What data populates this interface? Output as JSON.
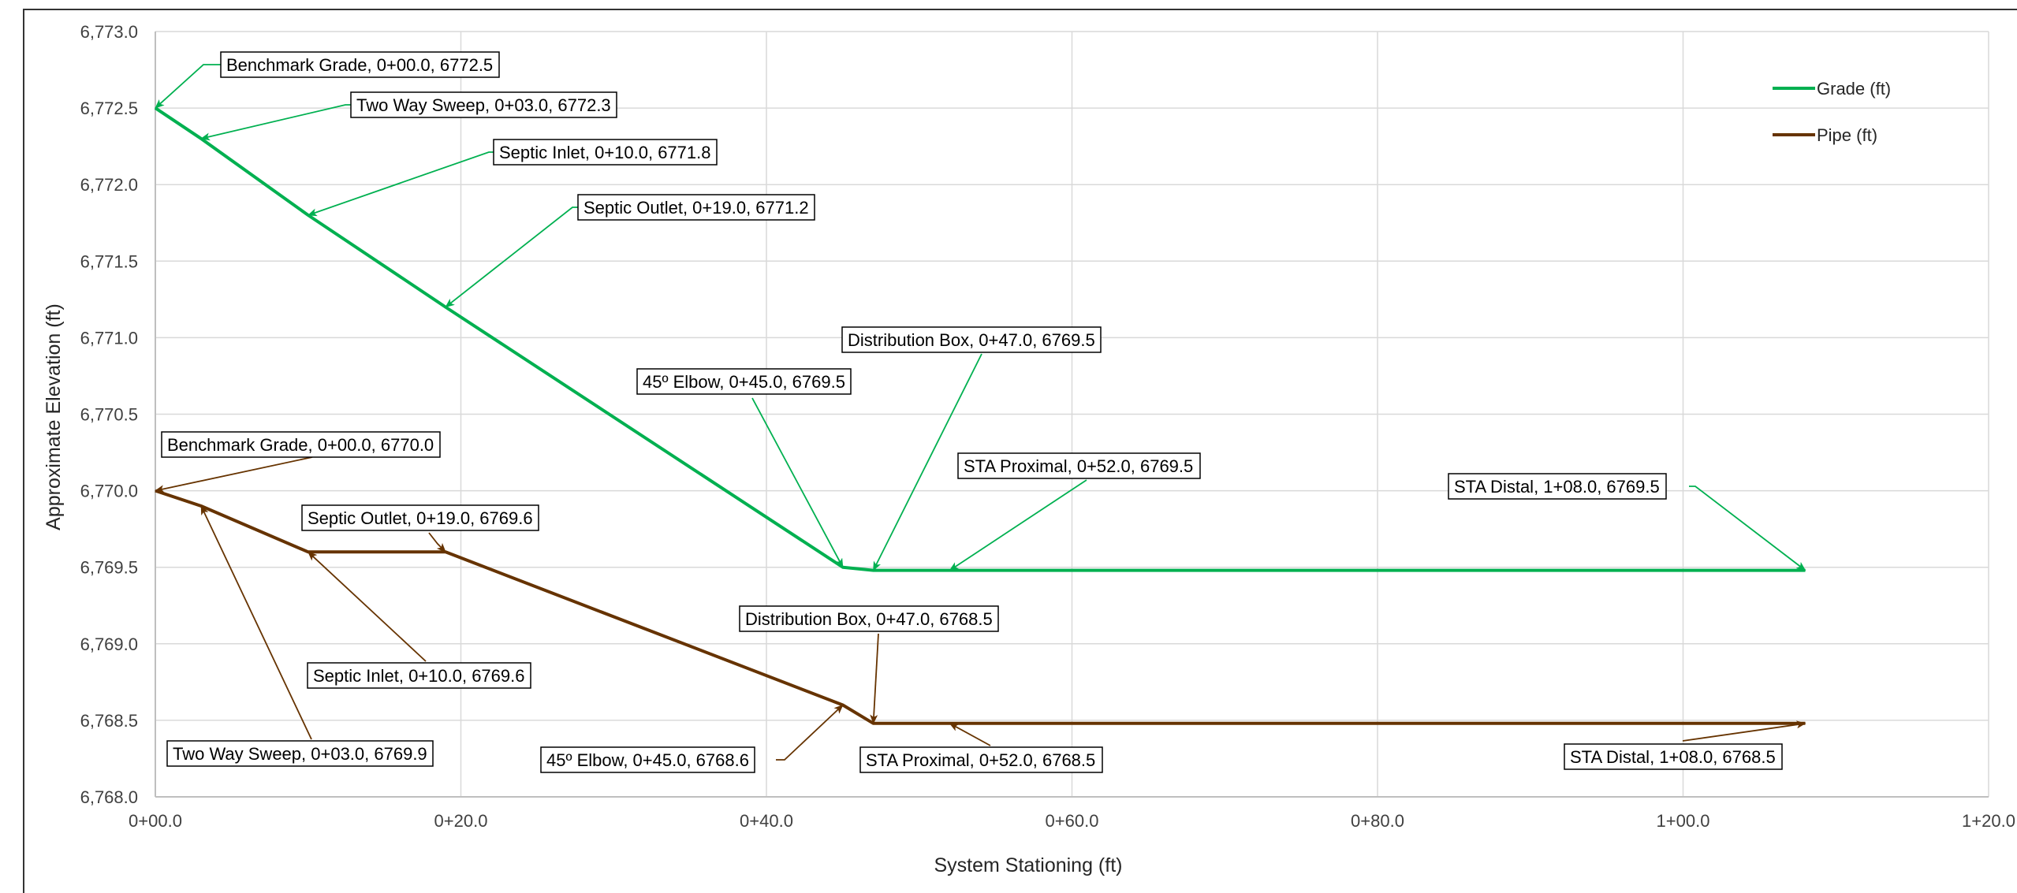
{
  "chart_data": {
    "type": "line",
    "xlabel": "System Stationing (ft)",
    "ylabel": "Approximate Elevation (ft)",
    "xlim": [
      0,
      120
    ],
    "ylim": [
      6768.0,
      6773.0
    ],
    "x_ticks": [
      {
        "value": 0,
        "label": "0+00.0"
      },
      {
        "value": 20,
        "label": "0+20.0"
      },
      {
        "value": 40,
        "label": "0+40.0"
      },
      {
        "value": 60,
        "label": "0+60.0"
      },
      {
        "value": 80,
        "label": "0+80.0"
      },
      {
        "value": 100,
        "label": "1+00.0"
      },
      {
        "value": 120,
        "label": "1+20.0"
      }
    ],
    "y_ticks": [
      {
        "value": 6768.0,
        "label": "6,768.0"
      },
      {
        "value": 6768.5,
        "label": "6,768.5"
      },
      {
        "value": 6769.0,
        "label": "6,769.0"
      },
      {
        "value": 6769.5,
        "label": "6,769.5"
      },
      {
        "value": 6770.0,
        "label": "6,770.0"
      },
      {
        "value": 6770.5,
        "label": "6,770.5"
      },
      {
        "value": 6771.0,
        "label": "6,771.0"
      },
      {
        "value": 6771.5,
        "label": "6,771.5"
      },
      {
        "value": 6772.0,
        "label": "6,772.0"
      },
      {
        "value": 6772.5,
        "label": "6,772.5"
      },
      {
        "value": 6773.0,
        "label": "6,773.0"
      }
    ],
    "grid": true,
    "legend_position": "top-right",
    "series": [
      {
        "name": "Grade (ft)",
        "color": "#00B050",
        "points": [
          {
            "x": 0,
            "y": 6772.5
          },
          {
            "x": 3,
            "y": 6772.3
          },
          {
            "x": 10,
            "y": 6771.8
          },
          {
            "x": 19,
            "y": 6771.2
          },
          {
            "x": 45,
            "y": 6769.5
          },
          {
            "x": 47,
            "y": 6769.48
          },
          {
            "x": 52,
            "y": 6769.48
          },
          {
            "x": 108,
            "y": 6769.48
          }
        ],
        "annotations": [
          {
            "label": "Benchmark Grade, 0+00.0, 6772.5",
            "x": 0,
            "y": 6772.5
          },
          {
            "label": "Two Way Sweep, 0+03.0, 6772.3",
            "x": 3,
            "y": 6772.3
          },
          {
            "label": "Septic Inlet, 0+10.0, 6771.8",
            "x": 10,
            "y": 6771.8
          },
          {
            "label": "Septic Outlet, 0+19.0, 6771.2",
            "x": 19,
            "y": 6771.2
          },
          {
            "label": "45º Elbow, 0+45.0, 6769.5",
            "x": 45,
            "y": 6769.5
          },
          {
            "label": "Distribution Box, 0+47.0, 6769.5",
            "x": 47,
            "y": 6769.48
          },
          {
            "label": "STA Proximal, 0+52.0, 6769.5",
            "x": 52,
            "y": 6769.48
          },
          {
            "label": "STA Distal, 1+08.0, 6769.5",
            "x": 108,
            "y": 6769.48
          }
        ]
      },
      {
        "name": "Pipe (ft)",
        "color": "#663300",
        "points": [
          {
            "x": 0,
            "y": 6770.0
          },
          {
            "x": 3,
            "y": 6769.9
          },
          {
            "x": 10,
            "y": 6769.6
          },
          {
            "x": 19,
            "y": 6769.6
          },
          {
            "x": 45,
            "y": 6768.6
          },
          {
            "x": 47,
            "y": 6768.48
          },
          {
            "x": 52,
            "y": 6768.48
          },
          {
            "x": 108,
            "y": 6768.48
          }
        ],
        "annotations": [
          {
            "label": "Benchmark Grade, 0+00.0, 6770.0",
            "x": 0,
            "y": 6770.0
          },
          {
            "label": "Two Way Sweep, 0+03.0, 6769.9",
            "x": 3,
            "y": 6769.9
          },
          {
            "label": "Septic Inlet, 0+10.0, 6769.6",
            "x": 10,
            "y": 6769.6
          },
          {
            "label": "Septic Outlet, 0+19.0, 6769.6",
            "x": 19,
            "y": 6769.6
          },
          {
            "label": "45º Elbow, 0+45.0, 6768.6",
            "x": 45,
            "y": 6768.6
          },
          {
            "label": "Distribution Box, 0+47.0, 6768.5",
            "x": 47,
            "y": 6768.48
          },
          {
            "label": "STA Proximal, 0+52.0, 6768.5",
            "x": 52,
            "y": 6768.48
          },
          {
            "label": "STA Distal, 1+08.0, 6768.5",
            "x": 108,
            "y": 6768.48
          }
        ]
      }
    ]
  }
}
